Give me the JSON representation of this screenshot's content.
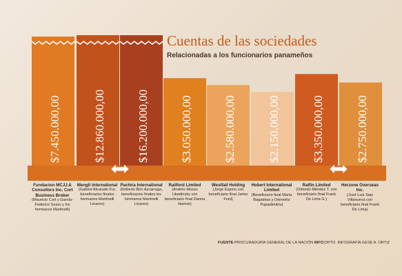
{
  "header": {
    "title": "Cuentas de las sociedades",
    "subtitle": "Relacionadas a los funcionarios panameños"
  },
  "chart_data": {
    "type": "bar",
    "title": "Cuentas de las sociedades",
    "subtitle": "Relacionadas a los funcionarios panameños",
    "categories": [
      "Fundacion MCJJ.& Consultors Inc. Cort Business Broker",
      "Mengli International",
      "Pachira International",
      "Railford Limited",
      "Westfall Holding",
      "Hobert International Limited",
      "Ralfin Limited",
      "Herzone Overseas Inc."
    ],
    "values": [
      7450000,
      12860000,
      16200000,
      3050000,
      2580000,
      2150000,
      3350000,
      2750000
    ],
    "value_labels": [
      "$7.450.000,00",
      "$12.860.000,00",
      "$16.200.000,00",
      "$3.050.000,00",
      "$2.580.000,00",
      "$2.150.000,00",
      "$3.350.000,00",
      "$2.750.000,00"
    ],
    "colors": [
      "#e07a23",
      "#c2521c",
      "#a8401f",
      "#e0801f",
      "#eca45c",
      "#f2c49a",
      "#cf5b20",
      "#e08f3c"
    ],
    "notes": [
      "(Mauricio Cort y Garola-Federico Suaro y los hermanos Martinelli)",
      "(Gabriel Alvarado Fur, beneficiarios finales hermanos Martinelli Linares)",
      "(Roberto Brin Azcarraga, beneficiarios finales los hermanos Martinelli Linares)",
      "(Andrés Mozes Libedinsky con beneficiario final Danna Harrick)",
      "(Jorge Espino con beneficiario final Jaime Ford)",
      "(Beneficiario final María Bagatelas y Demetrio Papadimitriu)",
      "(Olmedo Méndez T. con beneficiario final Frank De Lima G.)",
      "(José Luis Saiz Villanueva con beneficiario final Frank De Lima)"
    ]
  },
  "footer": {
    "source_label": "FUENTE:",
    "source_text": "PROCURADURÍA GENERAL DE LA NACIÓN",
    "info_label": "INFO:",
    "info_text": "DPTO. INFOGRAFÍA GESE A. ORTIZ"
  }
}
